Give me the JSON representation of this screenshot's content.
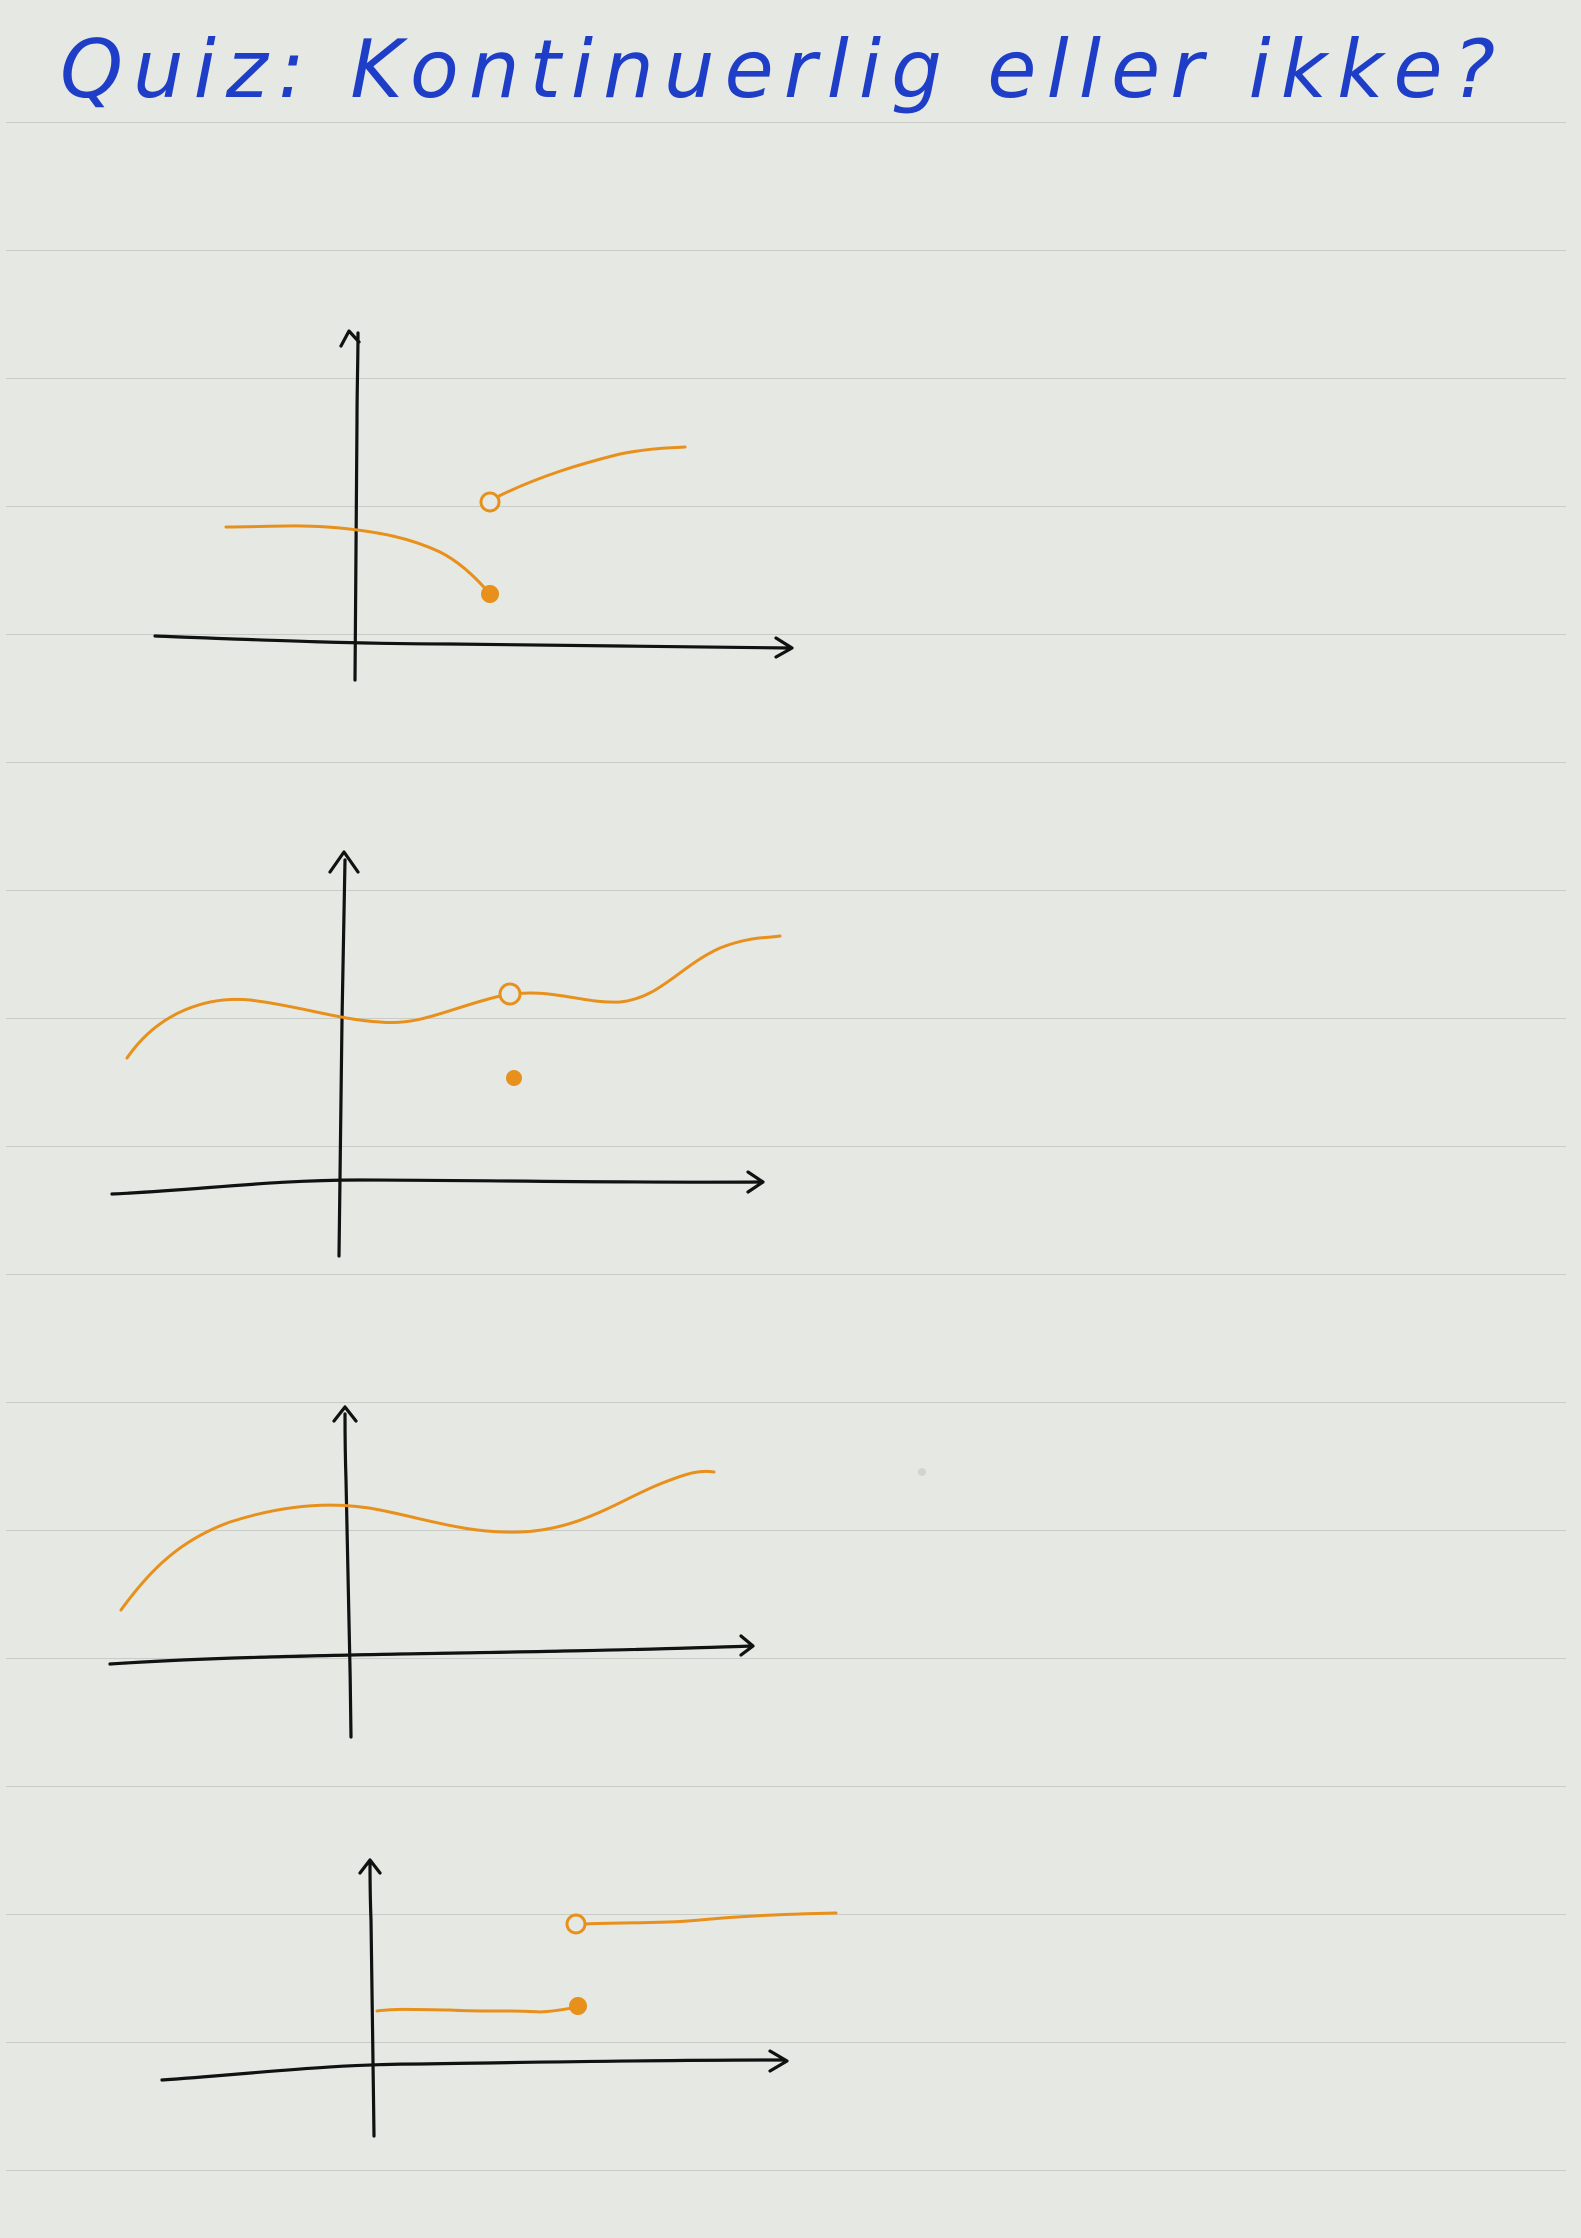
{
  "title": "Quiz: Kontinuerlig eller ikke?",
  "colors": {
    "title_ink": "#1e3ec8",
    "curve_ink": "#e8901c",
    "axis_ink": "#111111",
    "paper": "#e6e8e4",
    "rule_line": "#c9cbc7"
  },
  "sketches": [
    {
      "id": 1,
      "depicts": [
        "jump discontinuity",
        "filled dot",
        "open dot"
      ]
    },
    {
      "id": 2,
      "depicts": [
        "removable discontinuity",
        "open dot",
        "isolated filled dot"
      ]
    },
    {
      "id": 3,
      "depicts": [
        "continuous curve"
      ]
    },
    {
      "id": 4,
      "depicts": [
        "step function",
        "filled dot",
        "open dot"
      ]
    }
  ]
}
